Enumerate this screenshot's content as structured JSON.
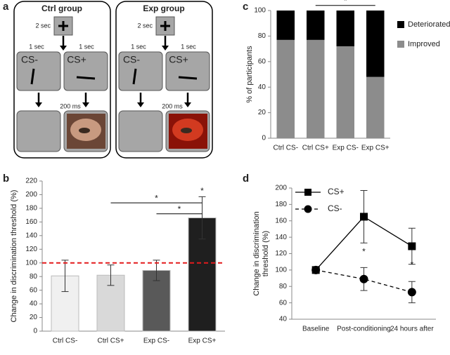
{
  "diagram": {
    "panel": "a",
    "groups": [
      {
        "title": "Ctrl group",
        "fixation_duration": "2 sec",
        "cue_durations": [
          "1 sec",
          "1 sec"
        ],
        "cues": [
          "CS-",
          "CS+"
        ],
        "outcome_duration": "200 ms"
      },
      {
        "title": "Exp group",
        "fixation_duration": "2 sec",
        "cue_durations": [
          "1 sec",
          "1 sec"
        ],
        "cues": [
          "CS-",
          "CS+"
        ],
        "outcome_duration": "200 ms"
      }
    ]
  },
  "chart_data": [
    {
      "panel": "b",
      "type": "bar",
      "ylabel": "Change in discrimination threshold (%)",
      "categories": [
        "Ctrl CS-",
        "Ctrl CS+",
        "Exp CS-",
        "Exp CS+"
      ],
      "values": [
        81,
        82,
        89,
        166
      ],
      "errors": [
        23,
        15,
        15,
        31
      ],
      "colors": [
        "#f0f0f0",
        "#d9d9d9",
        "#595959",
        "#1f1f1f"
      ],
      "ylim": [
        0,
        220
      ],
      "yticks": [
        0,
        20,
        40,
        60,
        80,
        100,
        120,
        140,
        160,
        180,
        200,
        220
      ],
      "reference_line": {
        "value": 100,
        "color": "#e31a1c"
      },
      "annotations": [
        {
          "text": "*",
          "from": 1,
          "to": 3,
          "y": 188
        },
        {
          "text": "*",
          "from": 2,
          "to": 3,
          "y": 172
        },
        {
          "text": "*",
          "at": 3,
          "y": 205
        }
      ]
    },
    {
      "panel": "c",
      "type": "stacked_bar",
      "ylabel": "% of participants",
      "categories": [
        "Ctrl CS-",
        "Ctrl CS+",
        "Exp CS-",
        "Exp CS+"
      ],
      "series": [
        {
          "name": "Improved",
          "color": "#8c8c8c",
          "values": [
            77,
            77,
            72,
            48
          ]
        },
        {
          "name": "Deteriorated",
          "color": "#000000",
          "values": [
            23,
            23,
            28,
            52
          ]
        }
      ],
      "ylim": [
        0,
        100
      ],
      "yticks": [
        0,
        20,
        40,
        60,
        80,
        100
      ],
      "annotations": [
        {
          "text": "*",
          "from": 1,
          "to": 3,
          "y": 104
        }
      ]
    },
    {
      "panel": "d",
      "type": "line",
      "ylabel": [
        "Change in discrimination",
        "threshold (%)"
      ],
      "categories": [
        "Baseline",
        "Post-conditioning",
        "24 hours after"
      ],
      "series": [
        {
          "name": "CS+",
          "color": "#000000",
          "marker": "square",
          "dashed": false,
          "values": [
            100,
            165,
            129
          ],
          "errors": [
            0,
            32,
            22
          ]
        },
        {
          "name": "CS-",
          "color": "#000000",
          "marker": "circle",
          "dashed": true,
          "values": [
            100,
            89,
            73
          ],
          "errors": [
            0,
            14,
            13
          ]
        }
      ],
      "ylim": [
        40,
        200
      ],
      "yticks": [
        40,
        60,
        80,
        100,
        120,
        140,
        160,
        180,
        200
      ],
      "annotations": [
        {
          "text": "*",
          "at": 1,
          "y": 122
        },
        {
          "text": "*",
          "at": 2,
          "y": 106
        }
      ]
    }
  ]
}
